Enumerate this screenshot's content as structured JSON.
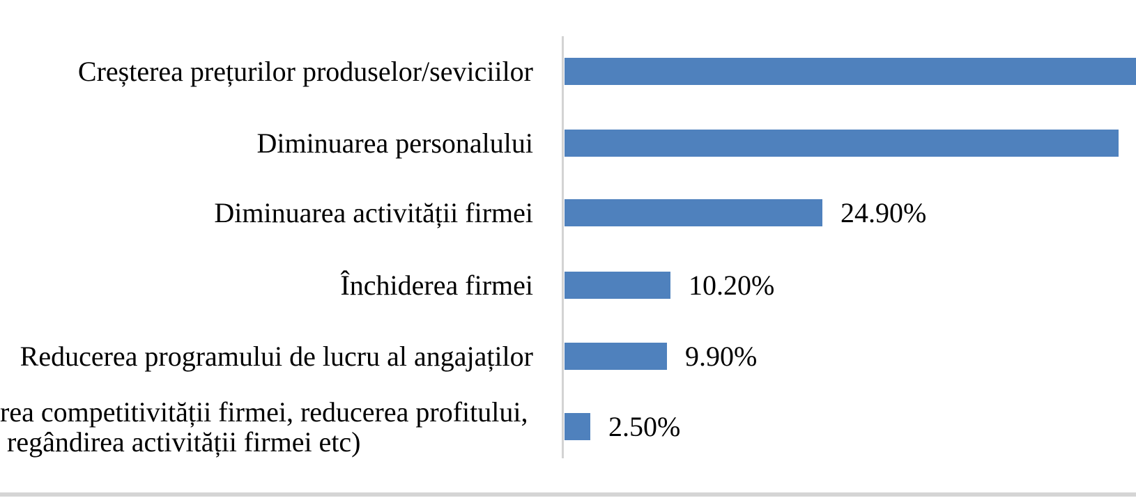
{
  "chart_data": {
    "type": "bar",
    "orientation": "horizontal",
    "title": "",
    "xlabel": "",
    "ylabel": "",
    "grid": false,
    "legend": false,
    "bar_color": "#4f81bd",
    "axis_line_color": "#d3d3d3",
    "bottom_border_color": "#d5d5d5",
    "text_color": "#000000",
    "xlim_pct": [
      0,
      55.2
    ],
    "layout_notes": "first bar runs past the right image edge (value label not visible); second bar value label also outside the visible area; last category label is clipped at the left image edge",
    "rows": [
      {
        "label": "Creșterea prețurilor produselor/seviciilor",
        "value_pct": 56.0,
        "value_estimated": true,
        "value_label": "",
        "bar_clipped_at_right_edge": true
      },
      {
        "label": "Diminuarea personalului",
        "value_pct": 53.5,
        "value_estimated": true,
        "value_label": ""
      },
      {
        "label": "Diminuarea activității firmei",
        "value_pct": 24.9,
        "value_label": "24.90%"
      },
      {
        "label": "Închiderea firmei",
        "value_pct": 10.2,
        "value_label": "10.20%"
      },
      {
        "label": "Reducerea programului de lucru al angajaților",
        "value_pct": 9.9,
        "value_label": "9.90%"
      },
      {
        "label_lines": [
          "rea competitivității firmei, reducerea profitului,",
          "regândirea activității firmei etc)"
        ],
        "label_clipped_at_left_edge": true,
        "value_pct": 2.5,
        "value_label": "2.50%"
      }
    ]
  }
}
